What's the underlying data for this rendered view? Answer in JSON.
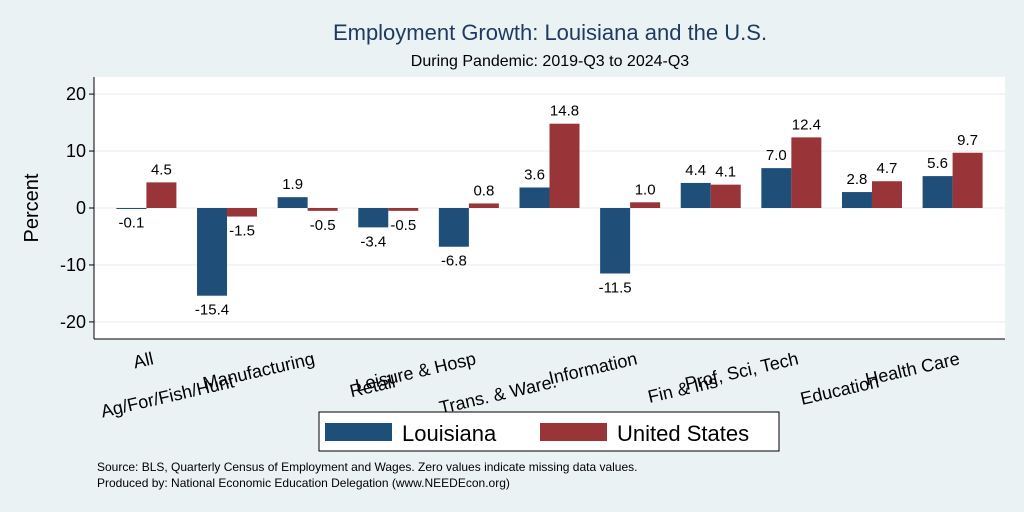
{
  "chart_data": {
    "type": "bar",
    "title": "Employment Growth: Louisiana and the U.S.",
    "subtitle": "During Pandemic: 2019-Q3 to 2024-Q3",
    "ylabel": "Percent",
    "ylim": [
      -23,
      23
    ],
    "yticks": [
      -20,
      -10,
      0,
      10,
      20
    ],
    "grid": true,
    "legend_position": "bottom",
    "categories": [
      "All",
      "Ag/For/Fish/Hunt",
      "Manufacturing",
      "Retail",
      "Leisure & Hosp",
      "Trans. & Ware.",
      "Information",
      "Fin & Ins",
      "Prof, Sci, Tech",
      "Education",
      "Health Care"
    ],
    "series": [
      {
        "name": "Louisiana",
        "color": "#1f4e79",
        "values": [
          -0.1,
          -15.4,
          1.9,
          -3.4,
          -6.8,
          3.6,
          -11.5,
          4.4,
          7.0,
          2.8,
          5.6
        ],
        "labels": [
          "-0.1",
          "-15.4",
          "1.9",
          "-3.4",
          "-6.8",
          "3.6",
          "-11.5",
          "4.4",
          "7.0",
          "2.8",
          "5.6"
        ]
      },
      {
        "name": "United States",
        "color": "#993439",
        "values": [
          4.5,
          -1.5,
          -0.5,
          -0.5,
          0.8,
          14.8,
          1.0,
          4.1,
          12.4,
          4.7,
          9.7
        ],
        "labels": [
          "4.5",
          "-1.5",
          "-0.5",
          "-0.5",
          "0.8",
          "14.8",
          "1.0",
          "4.1",
          "12.4",
          "4.7",
          "9.7"
        ]
      }
    ],
    "notes": [
      "Source: BLS, Quarterly Census of Employment and Wages. Zero values indicate missing data values.",
      "Produced by: National Economic Education Delegation (www.NEEDEcon.org)"
    ]
  }
}
